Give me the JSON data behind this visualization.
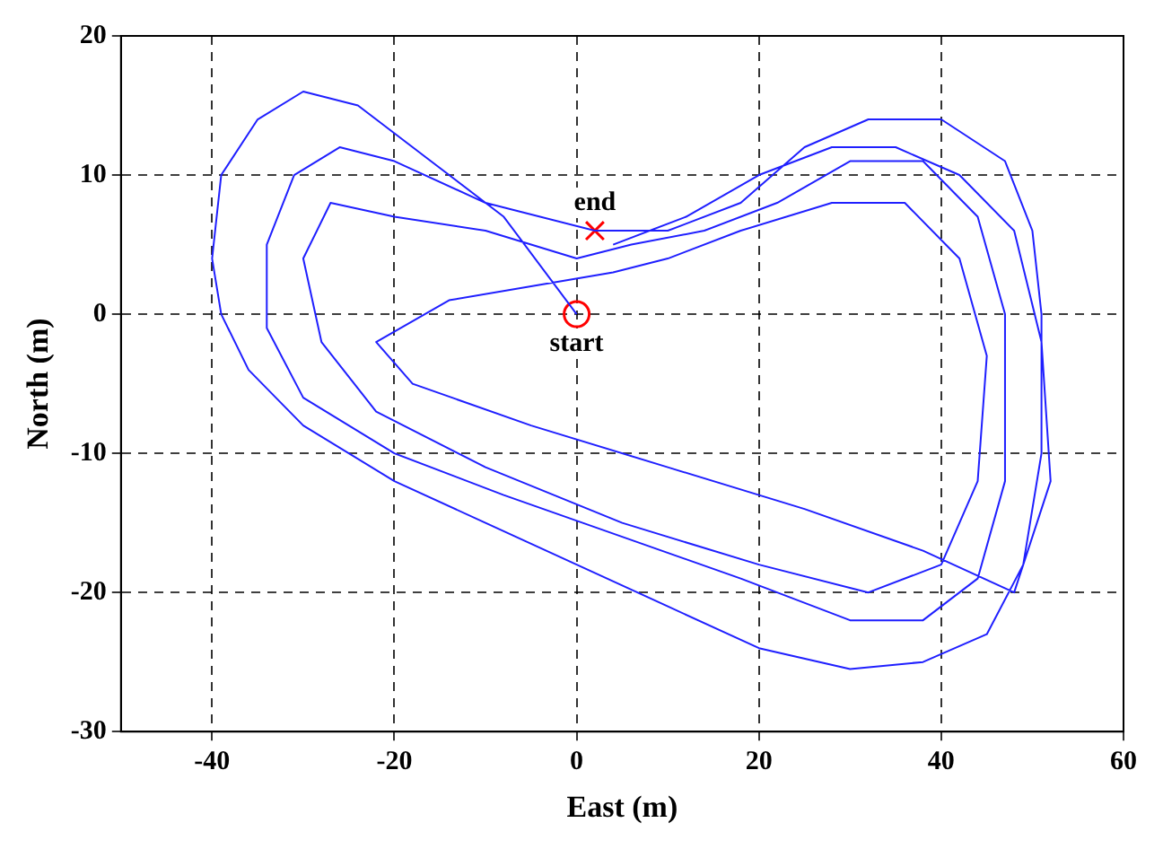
{
  "chart_data": {
    "type": "line",
    "xlabel": "East (m)",
    "ylabel": "North (m)",
    "xlim": [
      -50,
      60
    ],
    "xticks": [
      -40,
      -20,
      0,
      20,
      40,
      60
    ],
    "ylim": [
      -30,
      20
    ],
    "yticks": [
      -30,
      -20,
      -10,
      0,
      10,
      20
    ],
    "grid": true,
    "line_style": "solid",
    "marker": "none",
    "series": [
      {
        "color": "#1f1fff",
        "x": [
          0,
          -8,
          -16,
          -24,
          -30,
          -35,
          -39,
          -40,
          -39,
          -36,
          -30,
          -20,
          -10,
          0,
          10,
          20,
          30,
          38,
          45,
          49,
          51,
          51,
          50,
          47,
          40,
          32,
          25,
          18,
          10,
          2,
          -10,
          -20,
          -26,
          -31,
          -34,
          -34,
          -30,
          -20,
          -8,
          5,
          18,
          30,
          38,
          44,
          47,
          47,
          44,
          38,
          30,
          22,
          14,
          6,
          0,
          -10,
          -20,
          -27,
          -30,
          -28,
          -22,
          -10,
          5,
          20,
          32,
          40,
          44,
          45,
          42,
          36,
          28,
          18,
          10,
          4,
          -5,
          -14,
          -22,
          -18,
          -5,
          10,
          25,
          38,
          48,
          52,
          51,
          48,
          42,
          35,
          28,
          20,
          12,
          4
        ],
        "values": [
          0,
          7,
          11,
          15,
          16,
          14,
          10,
          4,
          0,
          -4,
          -8,
          -12,
          -15,
          -18,
          -21,
          -24,
          -25.5,
          -25,
          -23,
          -18,
          -10,
          0,
          6,
          11,
          14,
          14,
          12,
          8,
          6,
          6,
          8,
          11,
          12,
          10,
          5,
          -1,
          -6,
          -10,
          -13,
          -16,
          -19,
          -22,
          -22,
          -19,
          -12,
          0,
          7,
          11,
          11,
          8,
          6,
          5,
          4,
          6,
          7,
          8,
          4,
          -2,
          -7,
          -11,
          -15,
          -18,
          -20,
          -18,
          -12,
          -3,
          4,
          8,
          8,
          6,
          4,
          3,
          2,
          1,
          -2,
          -5,
          -8,
          -11,
          -14,
          -17,
          -20,
          -12,
          -2,
          6,
          10,
          12,
          12,
          10,
          7,
          5
        ]
      },
      {
        "type": "scatter",
        "color": "#ff0000",
        "marker": "circle",
        "x": [
          0
        ],
        "values": [
          0
        ]
      },
      {
        "type": "scatter",
        "color": "#ff0000",
        "marker": "cross",
        "x": [
          2
        ],
        "values": [
          6
        ]
      }
    ],
    "annotations": [
      {
        "text": "end",
        "x": 2,
        "y": 6
      },
      {
        "text": "start",
        "x": 0,
        "y": 0
      }
    ]
  }
}
